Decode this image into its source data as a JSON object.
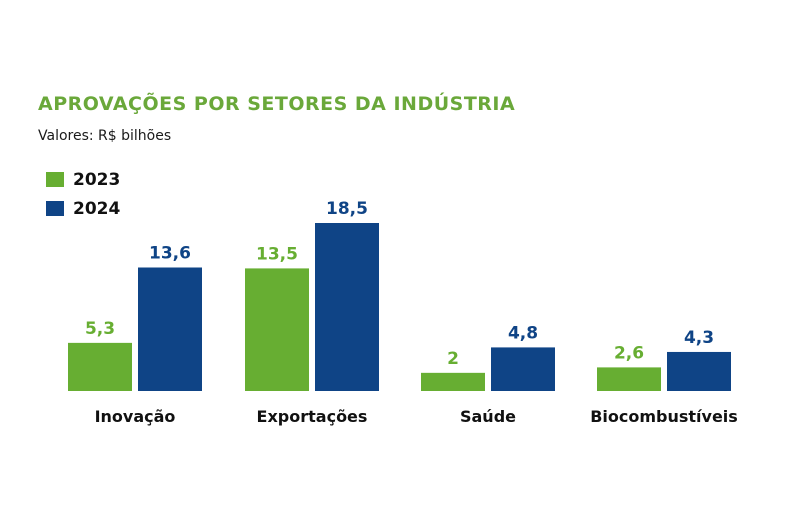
{
  "colors": {
    "2023": "#67ae32",
    "2024": "#0f4486",
    "title": "#6aa83a"
  },
  "chart_data": {
    "type": "bar",
    "title": "APROVAÇÕES POR SETORES DA INDÚSTRIA",
    "subtitle": "Valores: R$ bilhões",
    "xlabel": "",
    "ylabel": "",
    "ylim": [
      0,
      18.5
    ],
    "grid": false,
    "legend_position": "top-left",
    "categories": [
      "Inovação",
      "Exportações",
      "Saúde",
      "Biocombustíveis"
    ],
    "series": [
      {
        "name": "2023",
        "values": [
          5.3,
          13.5,
          2,
          2.6
        ],
        "labels": [
          "5,3",
          "13,5",
          "2",
          "2,6"
        ]
      },
      {
        "name": "2024",
        "values": [
          13.6,
          18.5,
          4.8,
          4.3
        ],
        "labels": [
          "13,6",
          "18,5",
          "4,8",
          "4,3"
        ]
      }
    ]
  }
}
